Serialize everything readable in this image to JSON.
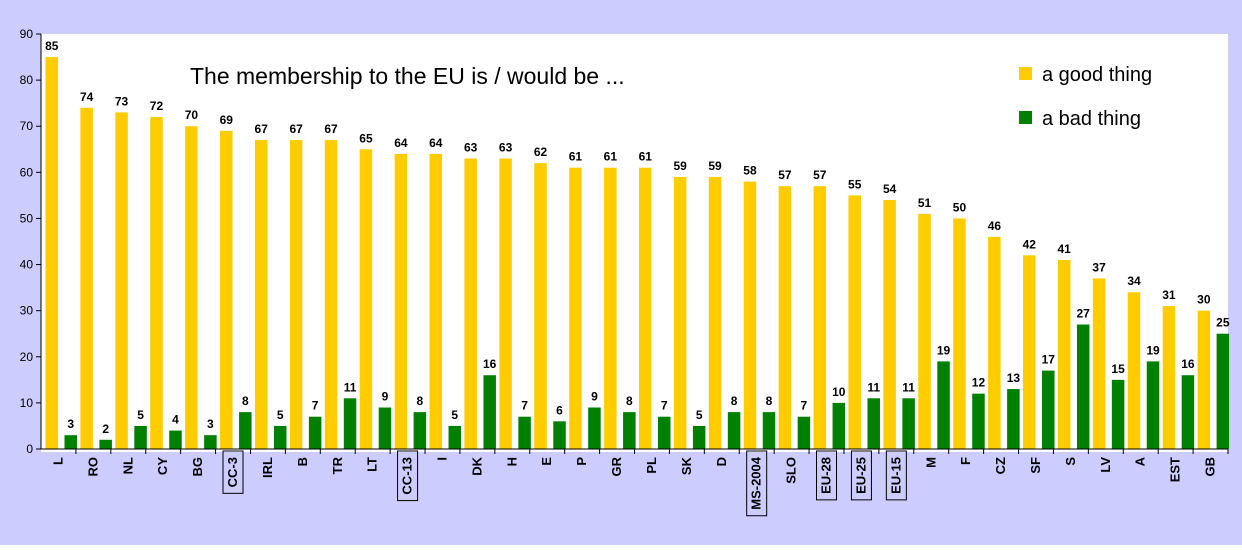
{
  "chart_data": {
    "type": "bar",
    "title": "The membership to the EU is / would be ...",
    "xlabel": "",
    "ylabel": "",
    "ylim": [
      0,
      90
    ],
    "yticks": [
      0,
      10,
      20,
      30,
      40,
      50,
      60,
      70,
      80,
      90
    ],
    "grid": false,
    "legend_position": "top-right",
    "categories": [
      "L",
      "RO",
      "NL",
      "CY",
      "BG",
      "CC-3",
      "IRL",
      "B",
      "TR",
      "LT",
      "CC-13",
      "I",
      "DK",
      "H",
      "E",
      "P",
      "GR",
      "PL",
      "SK",
      "D",
      "MS-2004",
      "SLO",
      "EU-28",
      "EU-25",
      "EU-15",
      "M",
      "F",
      "CZ",
      "SF",
      "S",
      "LV",
      "A",
      "EST",
      "GB"
    ],
    "boxed_categories": [
      "CC-3",
      "CC-13",
      "MS-2004",
      "EU-28",
      "EU-25",
      "EU-15"
    ],
    "series": [
      {
        "name": "a good thing",
        "color": "#FFCC00",
        "values": [
          85,
          74,
          73,
          72,
          70,
          69,
          67,
          67,
          67,
          65,
          64,
          64,
          63,
          63,
          62,
          61,
          61,
          61,
          59,
          59,
          58,
          57,
          57,
          55,
          54,
          51,
          50,
          46,
          42,
          41,
          37,
          34,
          31,
          30
        ]
      },
      {
        "name": "a bad thing",
        "color": "#008000",
        "values": [
          3,
          2,
          5,
          4,
          3,
          8,
          5,
          7,
          11,
          9,
          8,
          5,
          16,
          7,
          6,
          9,
          8,
          7,
          5,
          8,
          8,
          7,
          10,
          11,
          11,
          19,
          12,
          13,
          17,
          27,
          15,
          19,
          16,
          25
        ]
      }
    ]
  },
  "colors": {
    "background": "#CCCCFF",
    "plot_background": "#FFFFFF"
  }
}
